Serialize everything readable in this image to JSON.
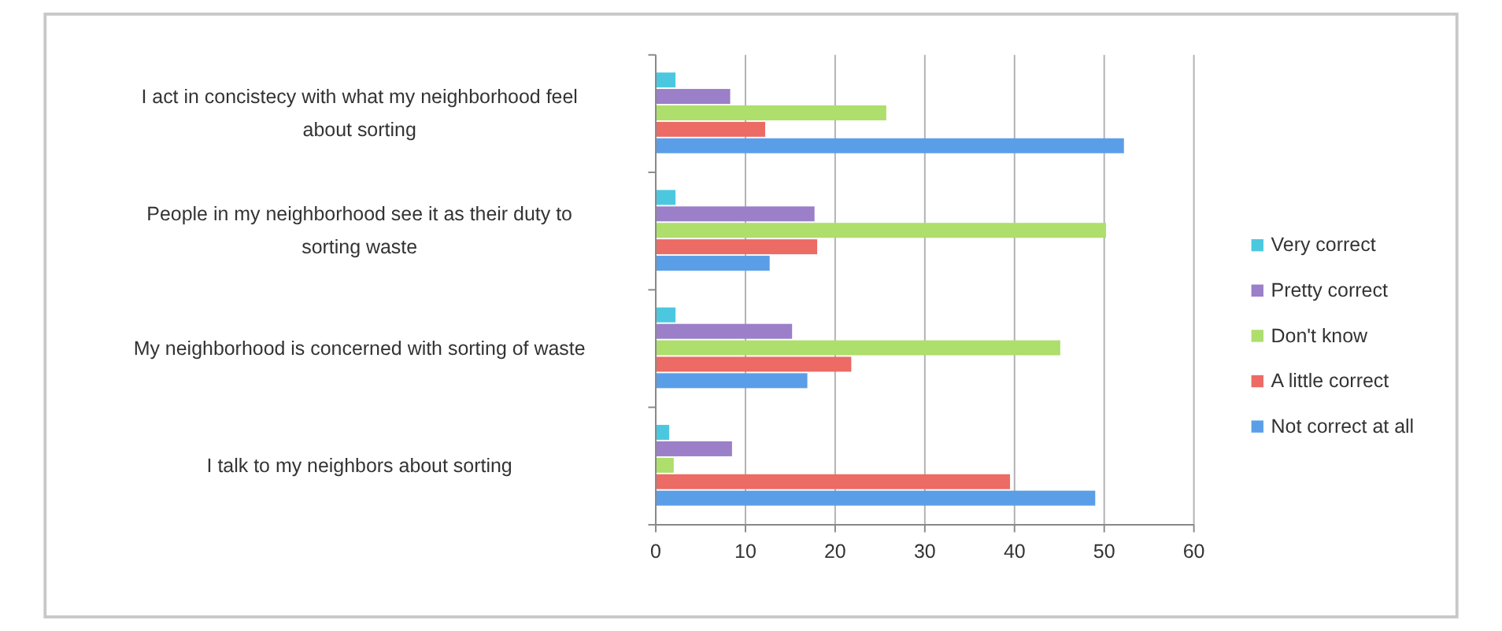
{
  "chart_data": {
    "type": "bar",
    "orientation": "horizontal",
    "categories": [
      "I act in concistecy with what my neighborhood feel about sorting",
      "People in my neighborhood see it as their duty to sorting waste",
      "My neighborhood is concerned with sorting of waste",
      "I talk to my neighbors about sorting"
    ],
    "series": [
      {
        "name": "Very correct",
        "color": "#4bc8e0",
        "values": [
          2.2,
          2.2,
          2.2,
          1.5
        ]
      },
      {
        "name": "Pretty correct",
        "color": "#9b7fc8",
        "values": [
          8.3,
          17.7,
          15.2,
          8.5
        ]
      },
      {
        "name": "Don't know",
        "color": "#aede6b",
        "values": [
          25.7,
          50.2,
          45.1,
          2
        ]
      },
      {
        "name": "A little correct",
        "color": "#ec6b65",
        "values": [
          12.2,
          18,
          21.8,
          39.5
        ]
      },
      {
        "name": "Not correct at all",
        "color": "#5a9ee8",
        "values": [
          52.2,
          12.7,
          16.9,
          49
        ]
      }
    ],
    "xlim": [
      0,
      60
    ],
    "xticks": [
      0,
      10,
      20,
      30,
      40,
      50,
      60
    ],
    "grid": "x",
    "legend": "right"
  }
}
